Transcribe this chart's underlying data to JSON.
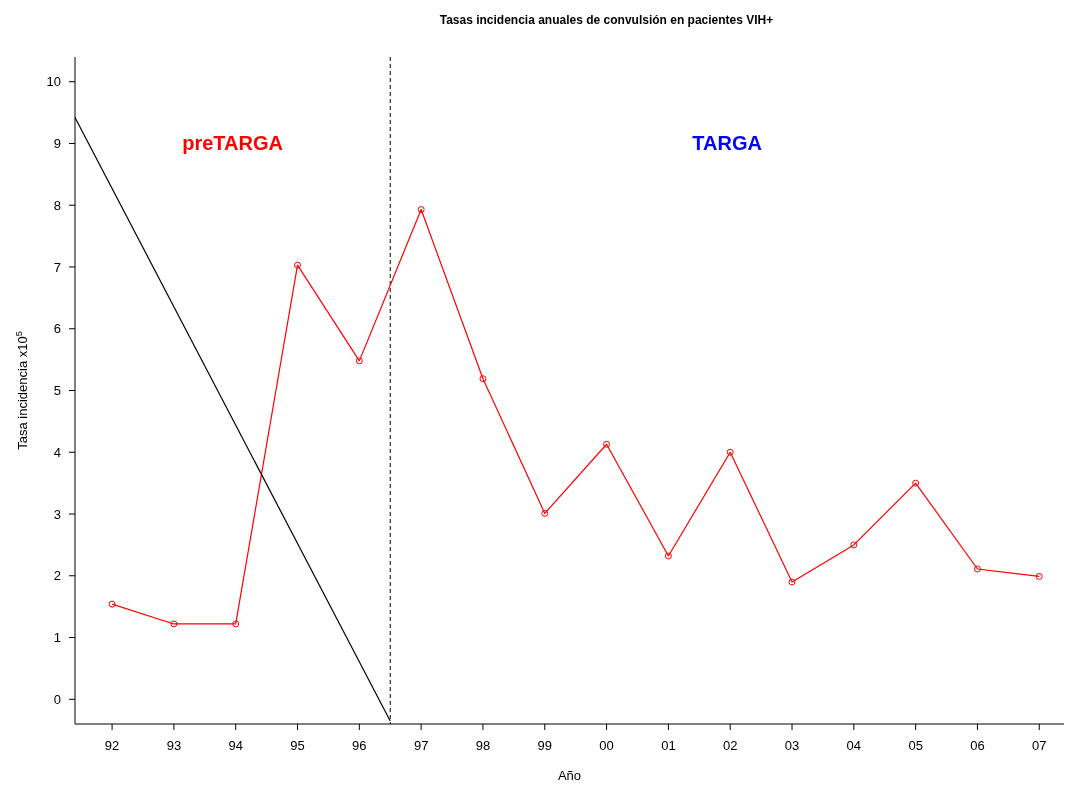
{
  "chart_data": {
    "type": "line",
    "title": "Tasas incidencia anuales de convulsión en pacientes VIH+",
    "xlabel": "Año",
    "ylabel": "Tasa incidencia x10$^{5}$",
    "x": [
      1992,
      1993,
      1994,
      1995,
      1996,
      1997,
      1998,
      1999,
      2000,
      2001,
      2002,
      2003,
      2004,
      2005,
      2006,
      2007
    ],
    "series": [
      {
        "color": "#ff0000",
        "values": [
          1.54,
          1.22,
          1.22,
          7.03,
          5.48,
          7.93,
          5.19,
          3.01,
          4.13,
          2.32,
          4.0,
          1.9,
          2.5,
          3.5,
          2.11,
          1.99
        ]
      },
      {
        "type": "line",
        "color": "#000000",
        "marker": "none",
        "x": [
          1991.4,
          1996.5
        ],
        "values": [
          9.42,
          -0.35
        ]
      }
    ],
    "xlim": [
      1991.4,
      2007.4
    ],
    "ylim": [
      -0.4,
      10.4
    ],
    "xticks": [
      {
        "value": 1992,
        "label": "92"
      },
      {
        "value": 1993,
        "label": "93"
      },
      {
        "value": 1994,
        "label": "94"
      },
      {
        "value": 1995,
        "label": "95"
      },
      {
        "value": 1996,
        "label": "96"
      },
      {
        "value": 1997,
        "label": "97"
      },
      {
        "value": 1998,
        "label": "98"
      },
      {
        "value": 1999,
        "label": "99"
      },
      {
        "value": 2000,
        "label": "00"
      },
      {
        "value": 2001,
        "label": "01"
      },
      {
        "value": 2002,
        "label": "02"
      },
      {
        "value": 2003,
        "label": "03"
      },
      {
        "value": 2004,
        "label": "04"
      },
      {
        "value": 2005,
        "label": "05"
      },
      {
        "value": 2006,
        "label": "06"
      },
      {
        "value": 2007,
        "label": "07"
      }
    ],
    "yticks": [
      0,
      1,
      2,
      3,
      4,
      5,
      6,
      7,
      8,
      9,
      10
    ],
    "ref_lines": [
      {
        "axis": "x",
        "value": 1996.5,
        "color": "#000000",
        "line_style": "dashed"
      }
    ],
    "annotations": [
      "preTARGA",
      "TARGA"
    ],
    "marker": "circle",
    "grid": false
  }
}
